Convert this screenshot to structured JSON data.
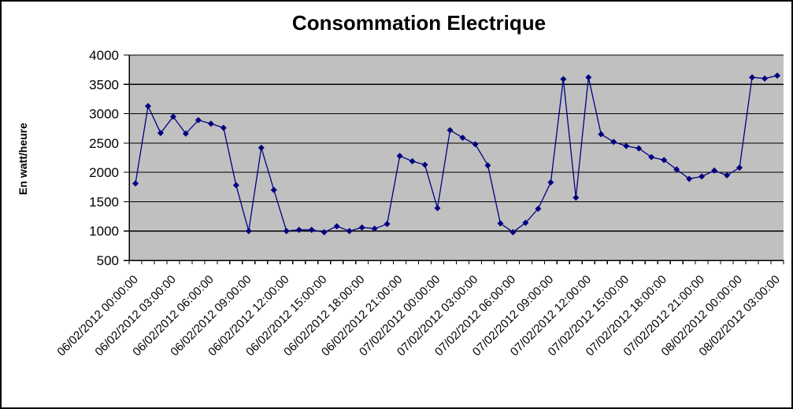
{
  "chart_data": {
    "type": "line",
    "title": "Consommation Electrique",
    "ylabel": "En watt/heure",
    "xlabel": "",
    "ylim": [
      500,
      4000
    ],
    "ytick_step": 500,
    "yticks": [
      500,
      1000,
      1500,
      2000,
      2500,
      3000,
      3500,
      4000
    ],
    "grid": true,
    "legend": "none",
    "plot_bg_color": "#C0C0C0",
    "series_color": "#000080",
    "gridline_color": "#000000",
    "x_label_every": 3,
    "categories": [
      "06/02/2012 00:00:00",
      "06/02/2012 01:00:00",
      "06/02/2012 02:00:00",
      "06/02/2012 03:00:00",
      "06/02/2012 04:00:00",
      "06/02/2012 05:00:00",
      "06/02/2012 06:00:00",
      "06/02/2012 07:00:00",
      "06/02/2012 08:00:00",
      "06/02/2012 09:00:00",
      "06/02/2012 10:00:00",
      "06/02/2012 11:00:00",
      "06/02/2012 12:00:00",
      "06/02/2012 13:00:00",
      "06/02/2012 14:00:00",
      "06/02/2012 15:00:00",
      "06/02/2012 16:00:00",
      "06/02/2012 17:00:00",
      "06/02/2012 18:00:00",
      "06/02/2012 19:00:00",
      "06/02/2012 20:00:00",
      "06/02/2012 21:00:00",
      "06/02/2012 22:00:00",
      "06/02/2012 23:00:00",
      "07/02/2012 00:00:00",
      "07/02/2012 01:00:00",
      "07/02/2012 02:00:00",
      "07/02/2012 03:00:00",
      "07/02/2012 04:00:00",
      "07/02/2012 05:00:00",
      "07/02/2012 06:00:00",
      "07/02/2012 07:00:00",
      "07/02/2012 08:00:00",
      "07/02/2012 09:00:00",
      "07/02/2012 10:00:00",
      "07/02/2012 11:00:00",
      "07/02/2012 12:00:00",
      "07/02/2012 13:00:00",
      "07/02/2012 14:00:00",
      "07/02/2012 15:00:00",
      "07/02/2012 16:00:00",
      "07/02/2012 17:00:00",
      "07/02/2012 18:00:00",
      "07/02/2012 19:00:00",
      "07/02/2012 20:00:00",
      "07/02/2012 21:00:00",
      "07/02/2012 22:00:00",
      "07/02/2012 23:00:00",
      "08/02/2012 00:00:00",
      "08/02/2012 01:00:00",
      "08/02/2012 02:00:00",
      "08/02/2012 03:00:00"
    ],
    "values": [
      1810,
      3130,
      2670,
      2950,
      2660,
      2890,
      2830,
      2760,
      1780,
      1000,
      2420,
      1700,
      1000,
      1020,
      1020,
      980,
      1080,
      1000,
      1060,
      1040,
      1120,
      2280,
      2190,
      2130,
      1390,
      2720,
      2590,
      2480,
      2120,
      1130,
      980,
      1140,
      1380,
      1830,
      3590,
      1570,
      3620,
      2650,
      2520,
      2450,
      2410,
      2260,
      2210,
      2050,
      1890,
      1930,
      2030,
      1950,
      2080,
      3620,
      3600,
      3650
    ]
  }
}
